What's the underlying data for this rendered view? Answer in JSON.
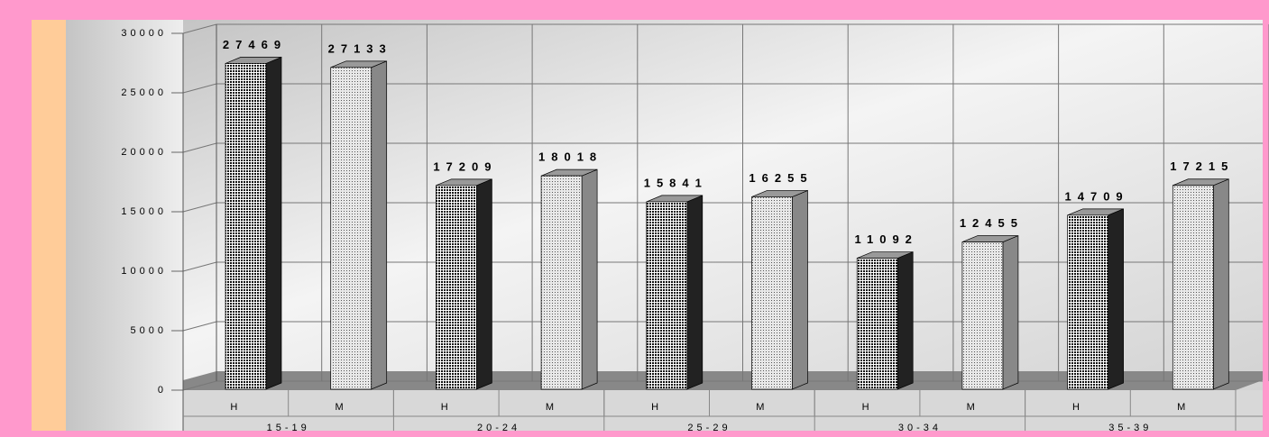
{
  "chart_data": {
    "type": "bar3d",
    "categories": [
      "15-19",
      "20-24",
      "25-29",
      "30-34",
      "35-39"
    ],
    "series": [
      {
        "name": "H",
        "color": "#222222",
        "values": [
          27469,
          17209,
          15841,
          11092,
          14709
        ]
      },
      {
        "name": "M",
        "color": "#888888",
        "values": [
          27133,
          18018,
          16255,
          12455,
          17215
        ]
      }
    ],
    "ylim": [
      0,
      30000
    ],
    "yticks": [
      0,
      5000,
      10000,
      15000,
      20000,
      25000,
      30000
    ],
    "grid": true
  }
}
